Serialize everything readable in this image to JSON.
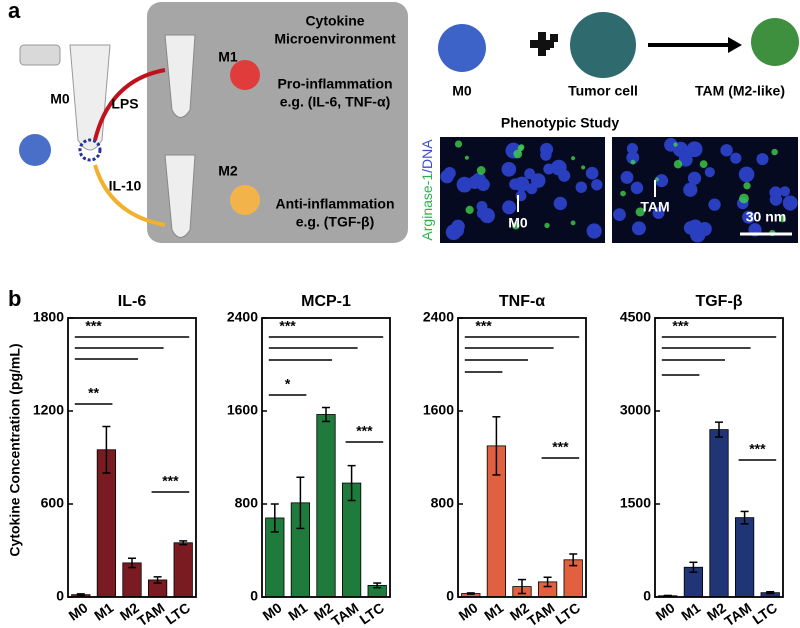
{
  "figure": {
    "panel_a": "a",
    "panel_b": "b",
    "diagram": {
      "m0": "M0",
      "lps": "LPS",
      "il10": "IL-10",
      "box_title_1": "Cytokine",
      "box_title_2": "Microenvironment",
      "m1": "M1",
      "pro_1": "Pro-inflammation",
      "pro_2": "e.g. (IL-6, TNF-α)",
      "m2": "M2",
      "anti_1": "Anti-inflammation",
      "anti_2": "e.g. (TGF-β)",
      "right_m0": "M0",
      "tumor": "Tumor cell",
      "tam": "TAM (M2-like)",
      "phenotypic": "Phenotypic Study",
      "stain_1": "Arginase-1",
      "stain_2": "/DNA",
      "img_m0": "M0",
      "img_tam": "TAM",
      "scale": "30 nm"
    },
    "y_label": "Cytokine Concentration (pg/mL)"
  },
  "chart_data": [
    {
      "type": "bar",
      "title": "IL-6",
      "categories": [
        "M0",
        "M1",
        "M2",
        "TAM",
        "LTC"
      ],
      "values": [
        15,
        950,
        220,
        110,
        350
      ],
      "errors": [
        5,
        150,
        30,
        20,
        12
      ],
      "color": "#7a1b21",
      "ylim": [
        0,
        1800
      ],
      "yticks": [
        0,
        600,
        1200,
        1800
      ],
      "annotations": [
        "***",
        "**",
        "***"
      ]
    },
    {
      "type": "bar",
      "title": "MCP-1",
      "categories": [
        "M0",
        "M1",
        "M2",
        "TAM",
        "LTC"
      ],
      "values": [
        680,
        810,
        1570,
        980,
        100
      ],
      "errors": [
        120,
        220,
        60,
        150,
        20
      ],
      "color": "#1f7b3b",
      "ylim": [
        0,
        2400
      ],
      "yticks": [
        0,
        800,
        1600,
        2400
      ],
      "annotations": [
        "***",
        "*",
        "***"
      ]
    },
    {
      "type": "bar",
      "title": "TNF-α",
      "categories": [
        "M0",
        "M1",
        "M2",
        "TAM",
        "LTC"
      ],
      "values": [
        30,
        1300,
        90,
        130,
        320
      ],
      "errors": [
        5,
        250,
        60,
        40,
        50
      ],
      "color": "#e0603f",
      "ylim": [
        0,
        2400
      ],
      "yticks": [
        0,
        800,
        1600,
        2400
      ],
      "annotations": [
        "***",
        "***"
      ]
    },
    {
      "type": "bar",
      "title": "TGF-β",
      "categories": [
        "M0",
        "M1",
        "M2",
        "TAM",
        "LTC"
      ],
      "values": [
        20,
        480,
        2700,
        1280,
        70
      ],
      "errors": [
        5,
        80,
        120,
        100,
        15
      ],
      "color": "#1f3575",
      "ylim": [
        0,
        4500
      ],
      "yticks": [
        0,
        1500,
        3000,
        4500
      ],
      "annotations": [
        "***",
        "***"
      ]
    }
  ]
}
